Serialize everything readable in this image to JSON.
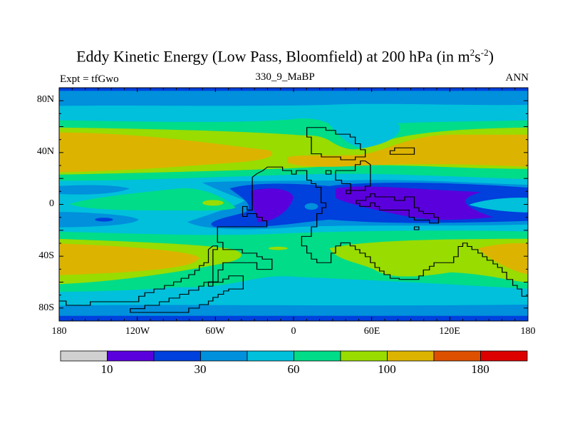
{
  "header": {
    "title_main": "Eddy Kinetic Energy (Low Pass, Bloomfield) at 200 hPa (in m",
    "title_sup1": "2",
    "title_mid": "s",
    "title_sup2": "-2",
    "title_end": ")",
    "left_string": "Expt = tfGwo",
    "center_string": "330_9_MaBP",
    "right_string": "ANN"
  },
  "chart_data": {
    "type": "heatmap",
    "title": "Eddy Kinetic Energy (Low Pass, Bloomfield) at 200 hPa (in m2s-2)",
    "variable": "Eddy Kinetic Energy",
    "units": "m2s-2",
    "level": "200 hPa",
    "xlabel": "",
    "ylabel": "",
    "xlim": [
      -180,
      180
    ],
    "ylim": [
      -90,
      90
    ],
    "x_ticks": [
      "180",
      "120W",
      "60W",
      "0",
      "60E",
      "120E",
      "180"
    ],
    "y_ticks": [
      "80N",
      "40N",
      "0",
      "40S",
      "80S"
    ],
    "colorbar": {
      "labels": [
        "10",
        "30",
        "60",
        "100",
        "180"
      ],
      "colors": [
        "#d0d0d0",
        "#5a00dc",
        "#0040dc",
        "#0090dc",
        "#00c0dc",
        "#00dc88",
        "#98dc00",
        "#dcb400",
        "#dc5000",
        "#dc0000"
      ]
    },
    "features": {
      "nh_jet_max_band": "100-140 near 30-40N",
      "sh_jet_max_band": "100-140 near 40S",
      "tropical_min": "10-20 near equator"
    }
  }
}
